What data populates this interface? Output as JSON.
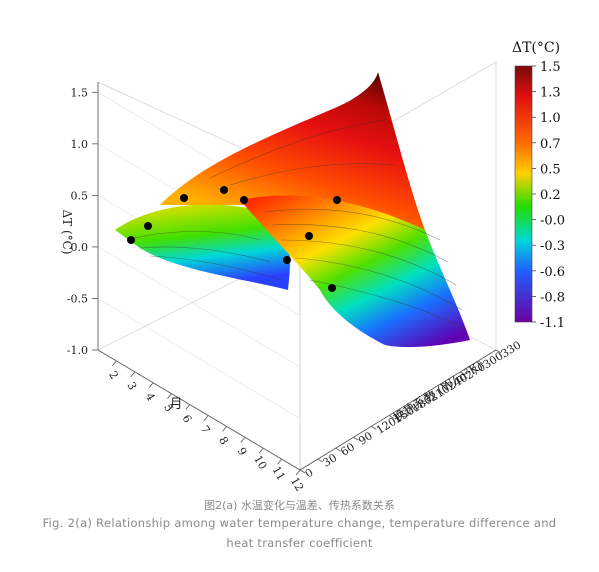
{
  "chart_data": {
    "type": "surface3d",
    "zlabel": "ΔT (°C)",
    "xlabel": "月",
    "ylabel": "换热系数 (W/m²K)",
    "x_ticks": [
      "2",
      "3",
      "4",
      "5",
      "6",
      "7",
      "8",
      "9",
      "10",
      "11",
      "12"
    ],
    "y_ticks": [
      "0",
      "30",
      "60",
      "90",
      "120",
      "150",
      "180",
      "210",
      "240",
      "270",
      "300",
      "330"
    ],
    "z_ticks": [
      "-1.0",
      "-0.5",
      "0.0",
      "0.5",
      "1.0",
      "1.5"
    ],
    "xlim": [
      1,
      12
    ],
    "ylim": [
      0,
      330
    ],
    "zlim": [
      -1.0,
      1.6
    ],
    "colorbar": {
      "title": "ΔT(°C)",
      "labels": [
        "1.5",
        "1.3",
        "1.0",
        "0.7",
        "0.5",
        "0.2",
        "-0.0",
        "-0.3",
        "-0.6",
        "-0.8",
        "-1.1"
      ],
      "range": [
        -1.1,
        1.5
      ]
    },
    "points": [
      {
        "month": 2,
        "coef": 0,
        "dt": 0.05
      },
      {
        "month": 3,
        "coef": 0,
        "dt": 0.2
      },
      {
        "month": 4,
        "coef": 0,
        "dt": 0.47
      },
      {
        "month": 6,
        "coef": 0,
        "dt": 0.53
      },
      {
        "month": 7,
        "coef": 0,
        "dt": 0.45
      },
      {
        "month": 12,
        "coef": 0,
        "dt": 0.45
      },
      {
        "month": 12,
        "coef": 0,
        "dt": 0.1
      },
      {
        "month": 11,
        "coef": 0,
        "dt": -0.15
      },
      {
        "month": 12,
        "coef": 0,
        "dt": -0.45
      }
    ]
  },
  "caption": {
    "cn": "图2(a) 水温变化与温差、传热系数关系",
    "en_line1": "Fig. 2(a) Relationship among water temperature change, temperature difference and",
    "en_line2": "heat transfer coefficient"
  }
}
